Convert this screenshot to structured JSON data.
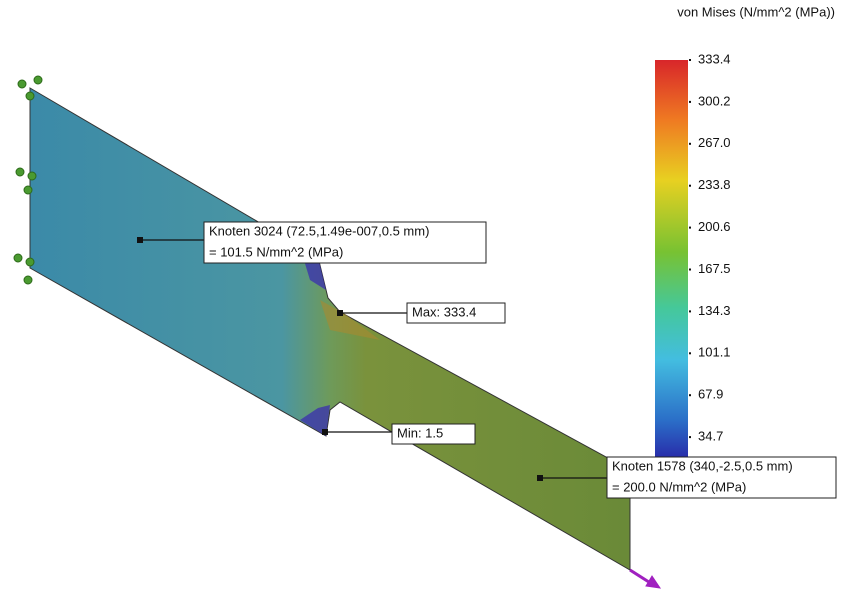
{
  "legend": {
    "title": "von Mises (N/mm^2 (MPa))",
    "ticks": [
      "333.4",
      "300.2",
      "267.0",
      "233.8",
      "200.6",
      "167.5",
      "134.3",
      "101.1",
      "67.9",
      "34.7"
    ]
  },
  "annotations": {
    "node_a": {
      "line1": "Knoten 3024 (72.5,1.49e-007,0.5 mm)",
      "line2": "= 101.5    N/mm^2 (MPa)"
    },
    "max": "Max: 333.4",
    "min": "Min: 1.5",
    "node_b": {
      "line1": "Knoten 1578 (340,-2.5,0.5 mm)",
      "line2": "= 200.0    N/mm^2 (MPa)"
    }
  }
}
